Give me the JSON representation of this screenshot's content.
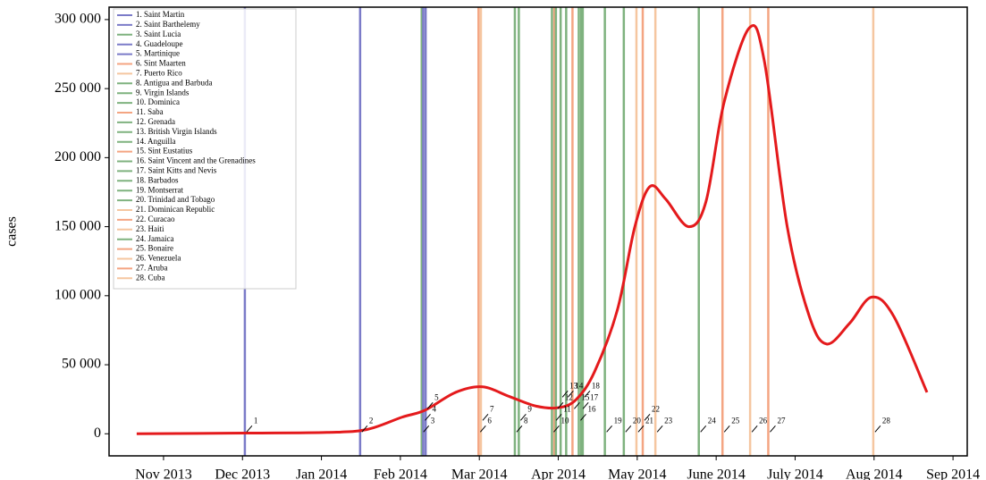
{
  "chart_data": {
    "type": "line",
    "y_label": "cases",
    "x": [
      -0.34,
      1.03,
      2.07,
      2.57,
      3.02,
      3.31,
      3.7,
      4.04,
      4.38,
      4.72,
      5.01,
      5.23,
      5.46,
      5.75,
      5.97,
      6.16,
      6.36,
      6.65,
      6.87,
      7.1,
      7.42,
      7.61,
      7.9,
      8.18,
      8.4,
      8.69,
      8.97,
      9.25,
      9.67
    ],
    "series": [
      {
        "color": "#e41a1c",
        "values": [
          0,
          500,
          1000,
          3000,
          12000,
          17000,
          30000,
          34000,
          27000,
          20000,
          19000,
          25000,
          45000,
          90000,
          150000,
          179000,
          170000,
          150000,
          168000,
          240000,
          294000,
          270000,
          150000,
          85000,
          65000,
          80000,
          99000,
          85000,
          30000
        ]
      }
    ],
    "xlim": [
      -0.69,
      10.18
    ],
    "ylim": [
      -16000,
      309000
    ],
    "xticks": [
      {
        "value": 0,
        "label": "Nov 2013"
      },
      {
        "value": 1,
        "label": "Dec 2013"
      },
      {
        "value": 2,
        "label": "Jan 2014"
      },
      {
        "value": 3,
        "label": "Feb 2014"
      },
      {
        "value": 4,
        "label": "Mar 2014"
      },
      {
        "value": 5,
        "label": "Apr 2014"
      },
      {
        "value": 6,
        "label": "May 2014"
      },
      {
        "value": 7,
        "label": "June 2014"
      },
      {
        "value": 8,
        "label": "July 2014"
      },
      {
        "value": 9,
        "label": "Aug 2014"
      },
      {
        "value": 10,
        "label": "Sep 2014"
      }
    ],
    "yticks": [
      0,
      {
        "value": 50000,
        "label": "50 000"
      },
      {
        "value": 100000,
        "label": "100 000"
      },
      {
        "value": 150000,
        "label": "150 000"
      },
      {
        "value": 200000,
        "label": "200 000"
      },
      {
        "value": 250000,
        "label": "250 000"
      },
      {
        "value": 300000,
        "label": "300 000"
      }
    ],
    "events": [
      {
        "label": "1",
        "name": "1. Saint Martin",
        "x": 1.03,
        "color": "#7b7bc8"
      },
      {
        "label": "2",
        "name": "2. Saint Barthelemy",
        "x": 2.49,
        "color": "#7b7bc8"
      },
      {
        "label": "3",
        "name": "3. Saint Lucia",
        "x": 3.27,
        "color": "#7fb27f"
      },
      {
        "label": "4",
        "name": "4. Guadeloupe",
        "x": 3.29,
        "color": "#7b7bc8"
      },
      {
        "label": "5",
        "name": "5. Martinique",
        "x": 3.32,
        "color": "#7b7bc8"
      },
      {
        "label": "6",
        "name": "6. Sint Maarten",
        "x": 3.99,
        "color": "#f4a582"
      },
      {
        "label": "7",
        "name": "7. Puerto Rico",
        "x": 4.02,
        "color": "#f5c6a0"
      },
      {
        "label": "8",
        "name": "8. Antigua and Barbuda",
        "x": 4.45,
        "color": "#7fb27f"
      },
      {
        "label": "9",
        "name": "9. Virgin Islands",
        "x": 4.5,
        "color": "#7fb27f"
      },
      {
        "label": "10",
        "name": "10. Dominica",
        "x": 4.92,
        "color": "#7fb27f"
      },
      {
        "label": "11",
        "name": "11. Saba",
        "x": 4.95,
        "color": "#f4a582"
      },
      {
        "label": "12",
        "name": "12. Grenada",
        "x": 4.97,
        "color": "#7fb27f"
      },
      {
        "label": "13",
        "name": "13. British Virgin Islands",
        "x": 5.03,
        "color": "#7fb27f"
      },
      {
        "label": "14",
        "name": "14. Anguilla",
        "x": 5.1,
        "color": "#7fb27f"
      },
      {
        "label": "15",
        "name": "15. Sint Eustatius",
        "x": 5.18,
        "color": "#f4a582"
      },
      {
        "label": "16",
        "name": "16. Saint Vincent and the Grenadines",
        "x": 5.26,
        "color": "#7fb27f"
      },
      {
        "label": "17",
        "name": "17. Saint Kitts and Nevis",
        "x": 5.29,
        "color": "#7fb27f"
      },
      {
        "label": "18",
        "name": "18. Barbados",
        "x": 5.31,
        "color": "#7fb27f"
      },
      {
        "label": "19",
        "name": "19. Montserrat",
        "x": 5.59,
        "color": "#7fb27f"
      },
      {
        "label": "20",
        "name": "20. Trinidad and Tobago",
        "x": 5.83,
        "color": "#7fb27f"
      },
      {
        "label": "21",
        "name": "21. Dominican Republic",
        "x": 5.99,
        "color": "#f5c6a0"
      },
      {
        "label": "22",
        "name": "22. Curacao",
        "x": 6.07,
        "color": "#f4a582"
      },
      {
        "label": "23",
        "name": "23. Haiti",
        "x": 6.23,
        "color": "#f5c6a0"
      },
      {
        "label": "24",
        "name": "24. Jamaica",
        "x": 6.78,
        "color": "#7fb27f"
      },
      {
        "label": "25",
        "name": "25. Bonaire",
        "x": 7.08,
        "color": "#f4a582"
      },
      {
        "label": "26",
        "name": "26. Venezuela",
        "x": 7.43,
        "color": "#f5c6a0"
      },
      {
        "label": "27",
        "name": "27. Aruba",
        "x": 7.66,
        "color": "#f4a582"
      },
      {
        "label": "28",
        "name": "28. Cuba",
        "x": 8.99,
        "color": "#f5c6a0"
      }
    ]
  }
}
